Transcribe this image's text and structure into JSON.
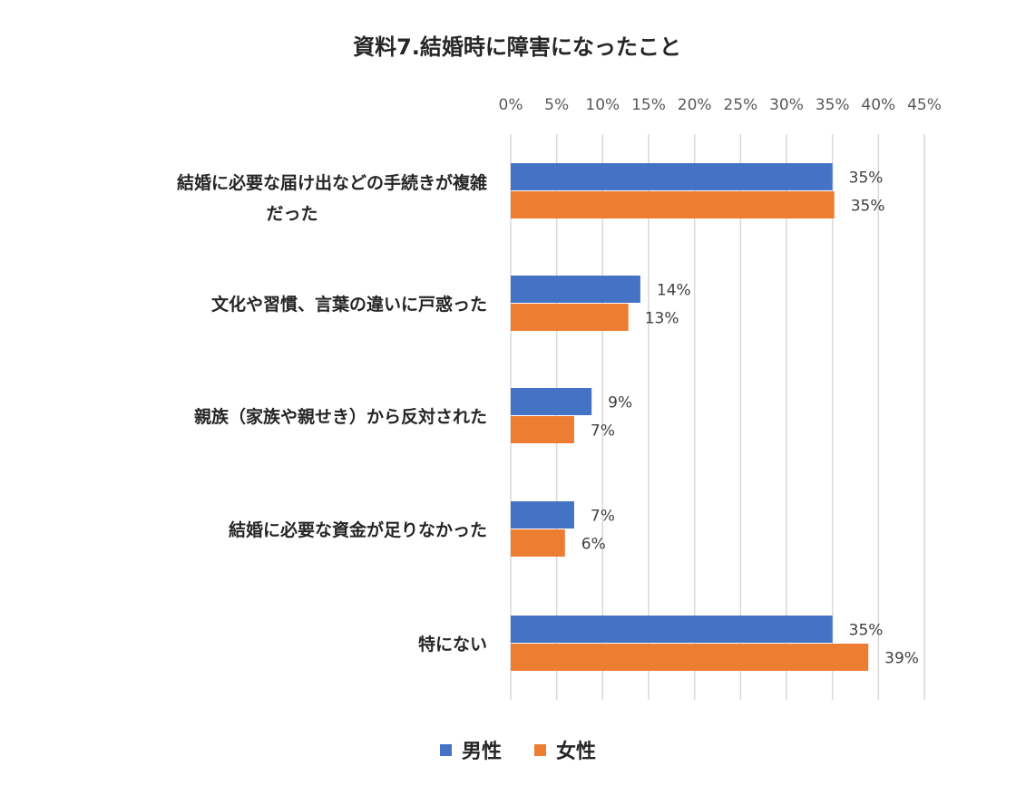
{
  "chart_data": {
    "type": "bar",
    "orientation": "horizontal",
    "title": "資料7.結婚時に障害になったこと",
    "xlabel": "",
    "ylabel": "",
    "xlim": [
      0,
      45
    ],
    "x_ticks": [
      "0%",
      "5%",
      "10%",
      "15%",
      "20%",
      "25%",
      "30%",
      "35%",
      "40%",
      "45%"
    ],
    "grid": true,
    "legend_position": "bottom",
    "categories": [
      [
        "結婚に必要な届け出などの手続きが複雑",
        "だった"
      ],
      [
        "文化や習慣、言葉の違いに戸惑った"
      ],
      [
        "親族（家族や親せき）から反対された"
      ],
      [
        "結婚に必要な資金が足りなかった"
      ],
      [
        "特にない"
      ]
    ],
    "series": [
      {
        "name": "男性",
        "color": "#4472C4",
        "values": [
          35.0,
          14.1,
          8.8,
          6.9,
          35.0
        ],
        "labels": [
          "35%",
          "14%",
          "9%",
          "7%",
          "35%"
        ]
      },
      {
        "name": "女性",
        "color": "#ED7D31",
        "values": [
          35.2,
          12.8,
          6.9,
          5.9,
          38.9
        ],
        "labels": [
          "35%",
          "13%",
          "7%",
          "6%",
          "39%"
        ]
      }
    ]
  }
}
